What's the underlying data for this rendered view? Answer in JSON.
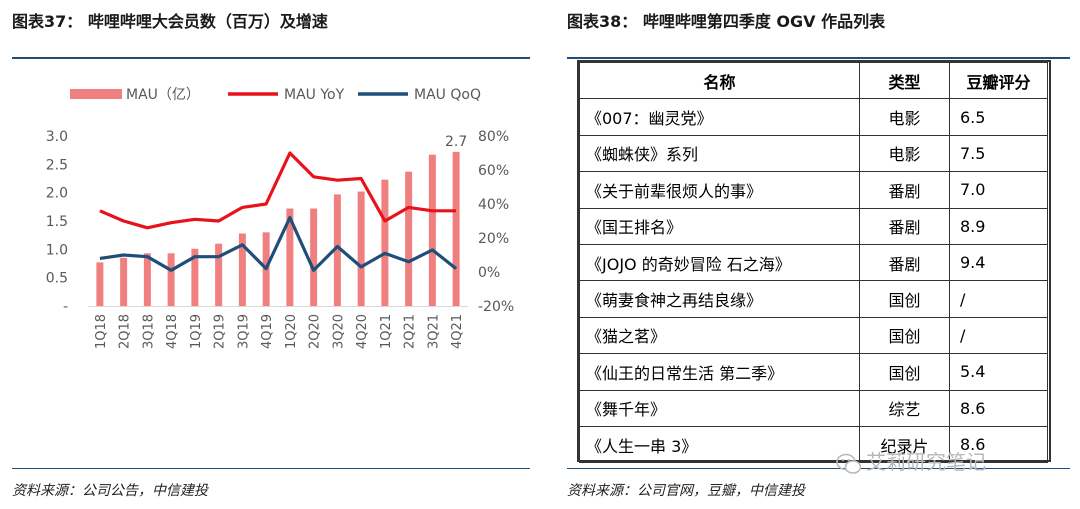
{
  "left_panel": {
    "title": "图表37：  哔哩哔哩大会员数（百万）及增速",
    "source": "资料来源：公司公告，中信建投"
  },
  "right_panel": {
    "title": "图表38：  哔哩哔哩第四季度 OGV 作品列表",
    "source": "资料来源：公司官网，豆瓣，中信建投",
    "table": {
      "headers": [
        "名称",
        "类型",
        "豆瓣评分"
      ],
      "rows": [
        [
          "《007：幽灵党》",
          "电影",
          "6.5"
        ],
        [
          "《蜘蛛侠》系列",
          "电影",
          "7.5"
        ],
        [
          "《关于前辈很烦人的事》",
          "番剧",
          "7.0"
        ],
        [
          "《国王排名》",
          "番剧",
          "8.9"
        ],
        [
          "《JOJO 的奇妙冒险  石之海》",
          "番剧",
          "9.4"
        ],
        [
          "《萌妻食神之再结良缘》",
          "国创",
          "/"
        ],
        [
          "《猫之茗》",
          "国创",
          "/"
        ],
        [
          "《仙王的日常生活  第二季》",
          "国创",
          "5.4"
        ],
        [
          "《舞千年》",
          "综艺",
          "8.6"
        ],
        [
          "《人生一串 3》",
          "纪录片",
          "8.6"
        ]
      ]
    }
  },
  "watermark": {
    "text": "艾莉研究笔记",
    "icon": "wechat-icon"
  },
  "chart_data": {
    "type": "bar",
    "title": "哔哩哔哩大会员数（百万）及增速",
    "categories": [
      "1Q18",
      "2Q18",
      "3Q18",
      "4Q18",
      "1Q19",
      "2Q19",
      "3Q19",
      "4Q19",
      "1Q20",
      "2Q20",
      "3Q20",
      "4Q20",
      "1Q21",
      "2Q21",
      "3Q21",
      "4Q21"
    ],
    "series": [
      {
        "name": "MAU（亿）",
        "kind": "bar",
        "axis": "left",
        "color": "#f08080",
        "values": [
          0.77,
          0.85,
          0.93,
          0.93,
          1.01,
          1.1,
          1.28,
          1.3,
          1.72,
          1.72,
          1.97,
          2.02,
          2.23,
          2.37,
          2.67,
          2.72
        ]
      },
      {
        "name": "MAU YoY",
        "kind": "line",
        "axis": "right",
        "color": "#e8121b",
        "values": [
          36,
          30,
          26,
          29,
          31,
          30,
          38,
          40,
          70,
          56,
          54,
          55,
          30,
          38,
          36,
          36
        ]
      },
      {
        "name": "MAU QoQ",
        "kind": "line",
        "axis": "right",
        "color": "#1f4e79",
        "values": [
          8,
          10,
          9,
          1,
          9,
          9,
          16,
          2,
          32,
          1,
          15,
          3,
          11,
          6,
          13,
          2
        ]
      }
    ],
    "left_axis": {
      "ylim": [
        0,
        3.0
      ],
      "ticks": [
        "-",
        "0.5",
        "1.0",
        "1.5",
        "2.0",
        "2.5",
        "3.0"
      ]
    },
    "right_axis": {
      "ylim": [
        -20,
        80
      ],
      "ticks": [
        "-20%",
        "0%",
        "20%",
        "40%",
        "60%",
        "80%"
      ]
    },
    "data_labels": [
      {
        "category_index": 15,
        "text": "2.7"
      }
    ],
    "legend": [
      "MAU（亿）",
      "MAU YoY",
      "MAU QoQ"
    ],
    "legend_position": "top",
    "grid": false
  }
}
